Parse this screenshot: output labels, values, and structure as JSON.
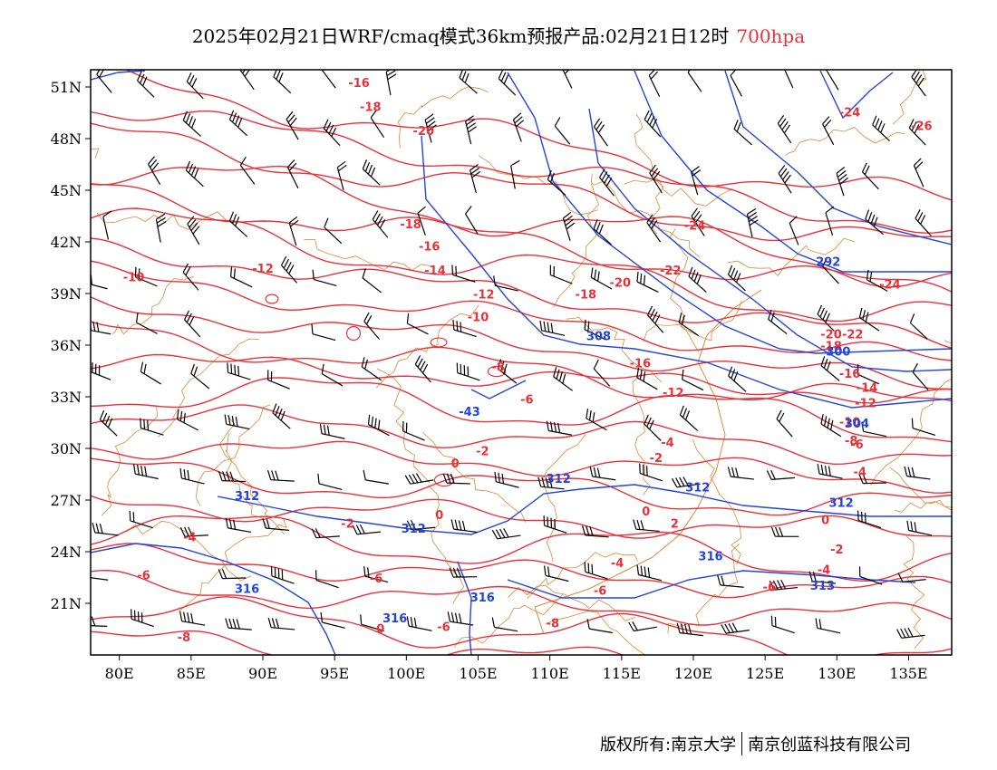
{
  "title": {
    "text": "2025年02月21日WRF/cmaq模式36km预报产品:02月21日12时",
    "level": "700hpa"
  },
  "footer": {
    "left": "版权所有:南京大学",
    "right": "南京创蓝科技有限公司"
  },
  "map": {
    "lon_range": [
      78,
      138
    ],
    "lat_range": [
      18,
      52
    ],
    "lon_ticks": [
      "80E",
      "85E",
      "90E",
      "95E",
      "100E",
      "105E",
      "110E",
      "115E",
      "120E",
      "125E",
      "130E",
      "135E"
    ],
    "lat_ticks": [
      "51N",
      "48N",
      "45N",
      "42N",
      "39N",
      "36N",
      "33N",
      "30N",
      "27N",
      "24N",
      "21N"
    ],
    "colors": {
      "temperature": "#e8323a",
      "height": "#2244dd",
      "boundary": "#d98a3a",
      "wind": "#000000"
    }
  },
  "chart_data": {
    "type": "map",
    "temperature_labels": [
      {
        "text": "-16",
        "lon": 96.7,
        "lat": 51.0
      },
      {
        "text": "-18",
        "lon": 97.5,
        "lat": 49.6
      },
      {
        "text": "-20",
        "lon": 101.2,
        "lat": 48.2
      },
      {
        "text": "-26",
        "lon": 120.2,
        "lat": 52.0
      },
      {
        "text": "-24",
        "lon": 130.9,
        "lat": 49.3
      },
      {
        "text": "-26",
        "lon": 135.9,
        "lat": 48.5
      },
      {
        "text": "-12",
        "lon": 90.0,
        "lat": 40.2
      },
      {
        "text": "-10",
        "lon": 81.0,
        "lat": 39.7
      },
      {
        "text": "-18",
        "lon": 100.3,
        "lat": 42.8
      },
      {
        "text": "-16",
        "lon": 101.6,
        "lat": 41.5
      },
      {
        "text": "-14",
        "lon": 102.0,
        "lat": 40.1
      },
      {
        "text": "-12",
        "lon": 105.4,
        "lat": 38.7
      },
      {
        "text": "-10",
        "lon": 105.0,
        "lat": 37.4
      },
      {
        "text": "-24",
        "lon": 120.1,
        "lat": 42.7
      },
      {
        "text": "-22",
        "lon": 118.4,
        "lat": 40.1
      },
      {
        "text": "-20",
        "lon": 114.9,
        "lat": 39.4
      },
      {
        "text": "-18",
        "lon": 112.5,
        "lat": 38.7
      },
      {
        "text": "-24",
        "lon": 133.7,
        "lat": 39.3
      },
      {
        "text": "-8",
        "lon": 106.4,
        "lat": 34.5
      },
      {
        "text": "-6",
        "lon": 108.4,
        "lat": 32.6
      },
      {
        "text": "-16",
        "lon": 116.3,
        "lat": 34.7
      },
      {
        "text": "-12",
        "lon": 118.6,
        "lat": 33.0
      },
      {
        "text": "-4",
        "lon": 118.2,
        "lat": 30.1
      },
      {
        "text": "-2",
        "lon": 117.4,
        "lat": 29.2
      },
      {
        "text": "-2",
        "lon": 105.3,
        "lat": 29.6
      },
      {
        "text": "0",
        "lon": 103.4,
        "lat": 28.9
      },
      {
        "text": "-20",
        "lon": 129.6,
        "lat": 36.4
      },
      {
        "text": "-22",
        "lon": 131.1,
        "lat": 36.4
      },
      {
        "text": "-18",
        "lon": 129.6,
        "lat": 35.7
      },
      {
        "text": "-16",
        "lon": 130.9,
        "lat": 34.1
      },
      {
        "text": "-14",
        "lon": 132.1,
        "lat": 33.3
      },
      {
        "text": "-12",
        "lon": 132.0,
        "lat": 32.4
      },
      {
        "text": "-10",
        "lon": 130.9,
        "lat": 31.3
      },
      {
        "text": "-8",
        "lon": 131.0,
        "lat": 30.2
      },
      {
        "text": "-6",
        "lon": 131.4,
        "lat": 30.0
      },
      {
        "text": "-4",
        "lon": 131.6,
        "lat": 28.4
      },
      {
        "text": "-2",
        "lon": 95.9,
        "lat": 25.4
      },
      {
        "text": "-4",
        "lon": 84.9,
        "lat": 24.6
      },
      {
        "text": "-6",
        "lon": 81.7,
        "lat": 22.4
      },
      {
        "text": "-6",
        "lon": 97.9,
        "lat": 22.2
      },
      {
        "text": "0",
        "lon": 102.3,
        "lat": 25.9
      },
      {
        "text": "0",
        "lon": 116.7,
        "lat": 26.1
      },
      {
        "text": "2",
        "lon": 118.7,
        "lat": 25.4
      },
      {
        "text": "0",
        "lon": 129.2,
        "lat": 25.6
      },
      {
        "text": "-2",
        "lon": 130.0,
        "lat": 23.9
      },
      {
        "text": "-4",
        "lon": 114.7,
        "lat": 23.1
      },
      {
        "text": "-6",
        "lon": 113.5,
        "lat": 21.5
      },
      {
        "text": "-6",
        "lon": 125.3,
        "lat": 21.7
      },
      {
        "text": "-4",
        "lon": 129.1,
        "lat": 22.7
      },
      {
        "text": "-8",
        "lon": 110.2,
        "lat": 19.6
      },
      {
        "text": "-8",
        "lon": 84.5,
        "lat": 18.8
      },
      {
        "text": "-6",
        "lon": 102.6,
        "lat": 19.4
      },
      {
        "text": "0",
        "lon": 98.2,
        "lat": 19.3
      }
    ],
    "height_labels": [
      {
        "text": "292",
        "lon": 129.4,
        "lat": 40.6
      },
      {
        "text": "300",
        "lon": 130.1,
        "lat": 35.4
      },
      {
        "text": "304",
        "lon": 131.4,
        "lat": 31.2
      },
      {
        "text": "308",
        "lon": 113.4,
        "lat": 36.3
      },
      {
        "text": "-43",
        "lon": 104.4,
        "lat": 31.9
      },
      {
        "text": "312",
        "lon": 88.9,
        "lat": 27.0
      },
      {
        "text": "312",
        "lon": 100.5,
        "lat": 25.1
      },
      {
        "text": "312",
        "lon": 110.6,
        "lat": 28.0
      },
      {
        "text": "312",
        "lon": 120.3,
        "lat": 27.5
      },
      {
        "text": "312",
        "lon": 130.3,
        "lat": 26.6
      },
      {
        "text": "316",
        "lon": 88.9,
        "lat": 21.6
      },
      {
        "text": "316",
        "lon": 99.2,
        "lat": 19.9
      },
      {
        "text": "316",
        "lon": 105.3,
        "lat": 21.1
      },
      {
        "text": "316",
        "lon": 121.2,
        "lat": 23.5
      },
      {
        "text": "313",
        "lon": 129.0,
        "lat": 21.8
      }
    ]
  }
}
